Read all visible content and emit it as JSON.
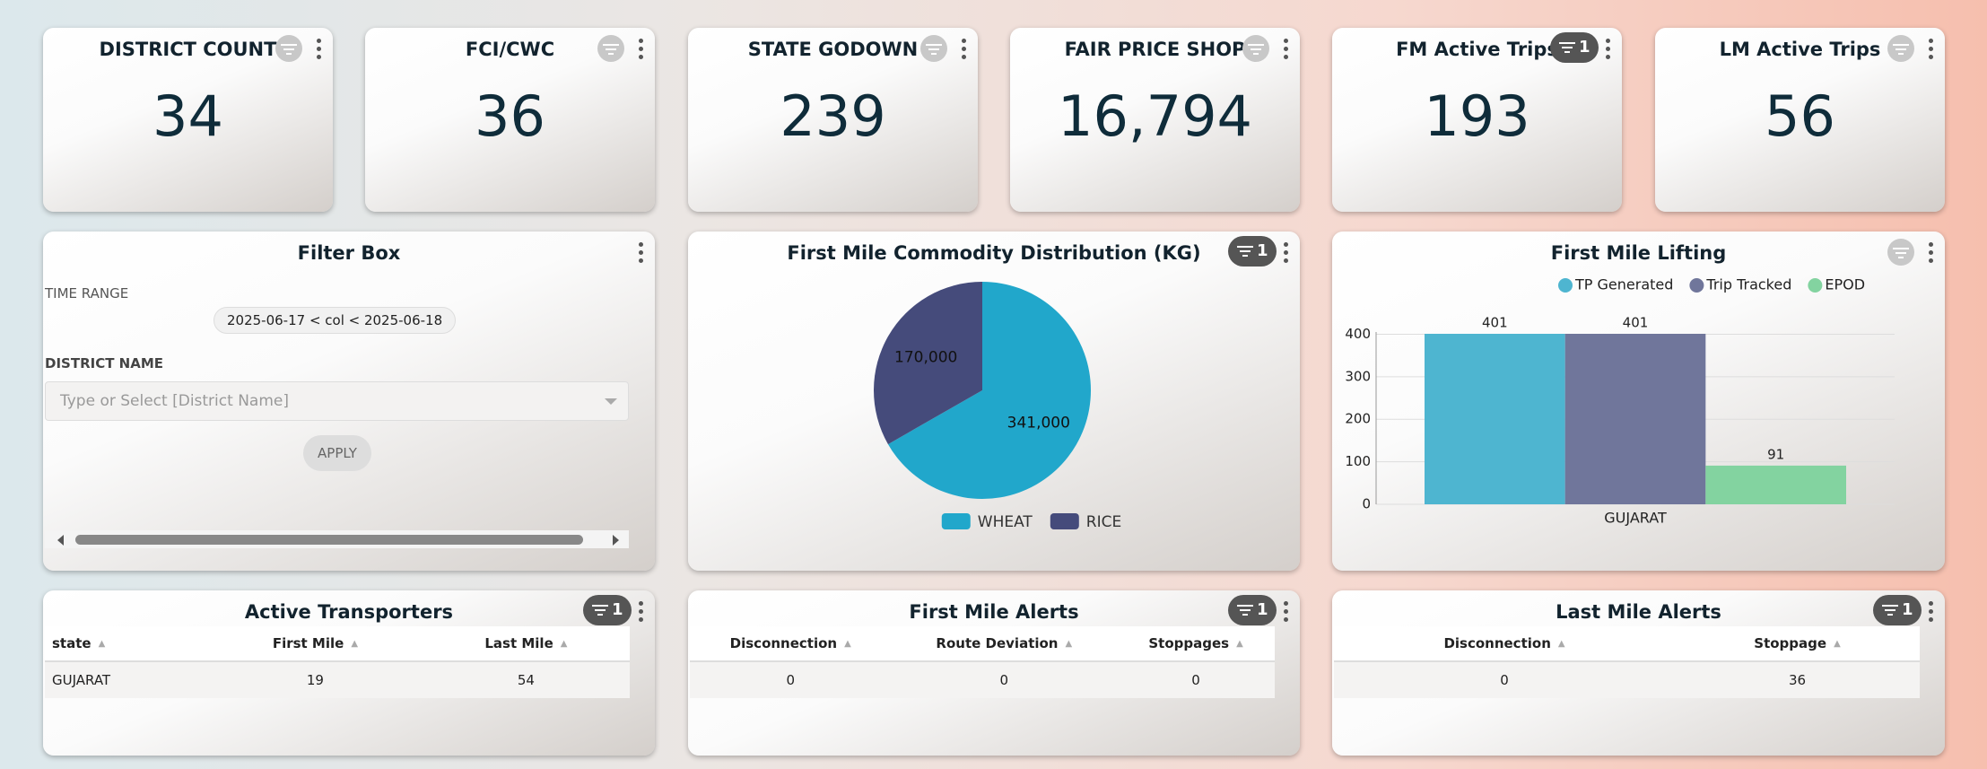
{
  "kpi_cards": [
    {
      "title": "DISTRICT COUNT",
      "value": 34
    },
    {
      "title": "FCI/CWC",
      "value": 36
    },
    {
      "title": "STATE GODOWN",
      "value": 239
    },
    {
      "title": "FAIR PRICE SHOP",
      "value": 16794,
      "value_label": "16,794"
    },
    {
      "title": "FM Active Trips",
      "value": 193,
      "filter_count": 1
    },
    {
      "title": "LM Active Trips",
      "value": 56
    }
  ],
  "filter_box": {
    "title": "Filter Box",
    "time_range_label": "TIME RANGE",
    "time_range_value": "2025-06-17 < col < 2025-06-18",
    "district_label": "DISTRICT NAME",
    "district_placeholder": "Type or Select [District Name]",
    "apply_button": "APPLY"
  },
  "chart_data": [
    {
      "type": "pie",
      "title": "First Mile Commodity Distribution (KG)",
      "filter_count": 1,
      "categories": [
        "WHEAT",
        "RICE"
      ],
      "values": [
        341000,
        170000
      ],
      "value_labels": [
        "341,000",
        "170,000"
      ],
      "colors": [
        "#21a7cb",
        "#454b7b"
      ],
      "legend": "bottom"
    },
    {
      "type": "bar",
      "title": "First Mile Lifting",
      "categories": [
        "GUJARAT"
      ],
      "series": [
        {
          "name": "TP Generated",
          "color": "#4eb5d0",
          "values": [
            401
          ]
        },
        {
          "name": "Trip Tracked",
          "color": "#70769b",
          "values": [
            401
          ]
        },
        {
          "name": "EPOD",
          "color": "#83d3a0",
          "values": [
            91
          ]
        }
      ],
      "ylim": [
        0,
        401
      ],
      "yticks": [
        0,
        100,
        200,
        300,
        400
      ],
      "grid": true,
      "legend": "top"
    }
  ],
  "tables": [
    {
      "title": "Active Transporters",
      "filter_count": 1,
      "columns": [
        "state",
        "First Mile",
        "Last Mile"
      ],
      "rows": [
        [
          "GUJARAT",
          19,
          54
        ]
      ]
    },
    {
      "title": "First Mile Alerts",
      "filter_count": 1,
      "columns": [
        "Disconnection",
        "Route Deviation",
        "Stoppages"
      ],
      "rows": [
        [
          0,
          0,
          0
        ]
      ]
    },
    {
      "title": "Last Mile Alerts",
      "filter_count": 1,
      "columns": [
        "Disconnection",
        "Stoppage"
      ],
      "rows": [
        [
          0,
          36
        ]
      ]
    }
  ]
}
